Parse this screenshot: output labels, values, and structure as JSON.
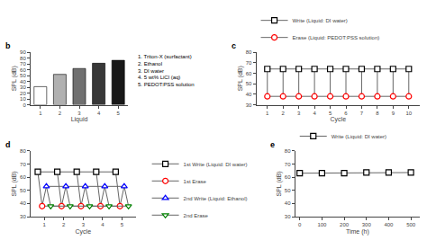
{
  "chart_data": [
    {
      "type": "bar",
      "title": "b",
      "categories": [
        "1",
        "2",
        "3",
        "4",
        "5"
      ],
      "values": [
        31,
        52,
        62,
        71,
        76
      ],
      "colors": [
        "#ffffff",
        "#b0b0b0",
        "#707070",
        "#383838",
        "#181818"
      ],
      "xlabel": "Liquid",
      "ylabel": "SPL (dB)",
      "ylim": [
        0,
        90
      ],
      "yticks": [
        0,
        10,
        20,
        30,
        40,
        50,
        60,
        70,
        80,
        90
      ],
      "grid": false,
      "annotations": [
        "1. Triton-X (surfactant)",
        "2. Ethanol",
        "3. DI water",
        "4. 5 wt% LiCl (aq)",
        "5. PEDOT:PSS solution"
      ]
    },
    {
      "type": "line",
      "title": "c",
      "x": [
        1,
        2,
        3,
        4,
        5,
        6,
        7,
        8,
        9,
        10
      ],
      "xlim": [
        0.3,
        10.7
      ],
      "xticks": [
        1,
        2,
        3,
        4,
        5,
        6,
        7,
        8,
        9,
        10
      ],
      "ylim": [
        30,
        80
      ],
      "yticks": [
        30,
        40,
        50,
        60,
        70,
        80
      ],
      "xlabel": "Cycle",
      "ylabel": "SPL (dB)",
      "color": "#666666",
      "grid": false,
      "legend": "above",
      "series": [
        {
          "name": "Write (Liquid: DI water)",
          "color": "black",
          "marker": "square",
          "values": [
            64,
            64,
            64,
            64,
            64,
            64,
            64,
            64,
            64,
            64
          ]
        },
        {
          "name": "Erase (Liquid: PEDOT:PSS solution)",
          "color": "red",
          "marker": "circle",
          "values": [
            38,
            38,
            38,
            38,
            38,
            38,
            38,
            38,
            38,
            38
          ]
        }
      ]
    },
    {
      "type": "line",
      "title": "d",
      "x": [
        1,
        2,
        3,
        4,
        5
      ],
      "xlim": [
        0.3,
        5.7
      ],
      "xticks": [
        1,
        2,
        3,
        4,
        5
      ],
      "ylim": [
        30,
        80
      ],
      "yticks": [
        30,
        40,
        50,
        60,
        70,
        80
      ],
      "xlabel": "Cycle",
      "ylabel": "SPL (dB)",
      "color": "#666666",
      "grid": false,
      "legend": "right",
      "series": [
        {
          "name": "1st Write (Liquid: DI water)",
          "color": "black",
          "marker": "square",
          "values": [
            64,
            64,
            64,
            64,
            64
          ]
        },
        {
          "name": "1st Erase",
          "color": "red",
          "marker": "circle",
          "values": [
            38,
            38,
            38,
            38,
            38
          ]
        },
        {
          "name": "2nd Write (Liquid: Ethanol)",
          "color": "blue",
          "marker": "triangle-up",
          "values": [
            53,
            53,
            53,
            53,
            53
          ]
        },
        {
          "name": "2nd Erase",
          "color": "green",
          "marker": "triangle-down",
          "values": [
            38,
            38,
            38,
            38,
            38
          ]
        }
      ]
    },
    {
      "type": "line",
      "title": "e",
      "x": [
        0,
        100,
        200,
        300,
        400,
        500
      ],
      "xlim": [
        -20,
        540
      ],
      "xticks": [
        0,
        100,
        200,
        300,
        400,
        500
      ],
      "ylim": [
        30,
        80
      ],
      "yticks": [
        30,
        40,
        50,
        60,
        70,
        80
      ],
      "xlabel": "Time (h)",
      "ylabel": "SPL (dB)",
      "color": "#666666",
      "grid": false,
      "legend": "above",
      "series": [
        {
          "name": "Write (Liquid: DI water)",
          "color": "black",
          "marker": "square",
          "values": [
            63,
            63,
            63,
            63.5,
            63.5,
            63.5
          ]
        }
      ]
    }
  ]
}
